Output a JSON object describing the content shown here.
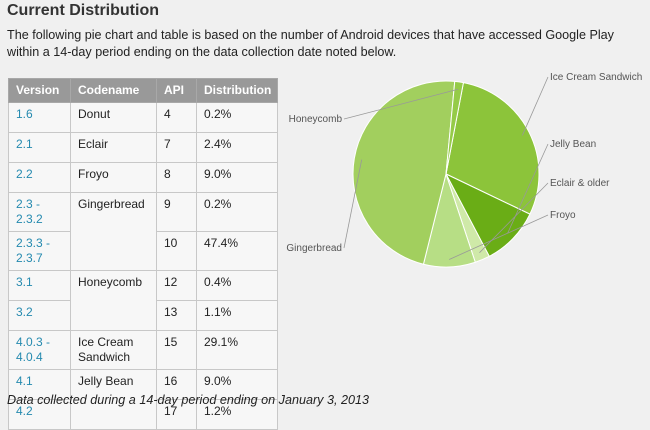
{
  "title": "Current Distribution",
  "intro": "The following pie chart and table is based on the number of Android devices that have accessed Google Play within a 14-day period ending on the data collection date noted below.",
  "table": {
    "headers": [
      "Version",
      "Codename",
      "API",
      "Distribution"
    ],
    "rows": [
      {
        "version": "1.6",
        "codename": "Donut",
        "api": "4",
        "distribution": "0.2%"
      },
      {
        "version": "2.1",
        "codename": "Eclair",
        "api": "7",
        "distribution": "2.4%"
      },
      {
        "version": "2.2",
        "codename": "Froyo",
        "api": "8",
        "distribution": "9.0%"
      },
      {
        "version": "2.3 - 2.3.2",
        "codename": "Gingerbread",
        "api": "9",
        "distribution": "0.2%"
      },
      {
        "version": "2.3.3 - 2.3.7",
        "codename": "",
        "api": "10",
        "distribution": "47.4%"
      },
      {
        "version": "3.1",
        "codename": "Honeycomb",
        "api": "12",
        "distribution": "0.4%"
      },
      {
        "version": "3.2",
        "codename": "",
        "api": "13",
        "distribution": "1.1%"
      },
      {
        "version": "4.0.3 - 4.0.4",
        "codename": "Ice Cream Sandwich",
        "api": "15",
        "distribution": "29.1%"
      },
      {
        "version": "4.1",
        "codename": "Jelly Bean",
        "api": "16",
        "distribution": "9.0%"
      },
      {
        "version": "4.2",
        "codename": "",
        "api": "17",
        "distribution": "1.2%"
      }
    ]
  },
  "footer": "Data collected during a 14-day period ending on January 3, 2013",
  "colors": {
    "link": "#258aaf",
    "header_bg": "#999999",
    "pie_outline": "#ffffff"
  },
  "chart_data": {
    "type": "pie",
    "slices": [
      {
        "label": "Ice Cream Sandwich",
        "value": 29.1,
        "color": "#8cc43a"
      },
      {
        "label": "Jelly Bean",
        "value": 10.2,
        "color": "#6aad16"
      },
      {
        "label": "Eclair & older",
        "value": 2.6,
        "color": "#cfe9a8"
      },
      {
        "label": "Froyo",
        "value": 9.0,
        "color": "#b7de85"
      },
      {
        "label": "Gingerbread",
        "value": 47.6,
        "color": "#a2cf5e"
      },
      {
        "label": "Honeycomb",
        "value": 1.5,
        "color": "#95cb48"
      }
    ]
  }
}
